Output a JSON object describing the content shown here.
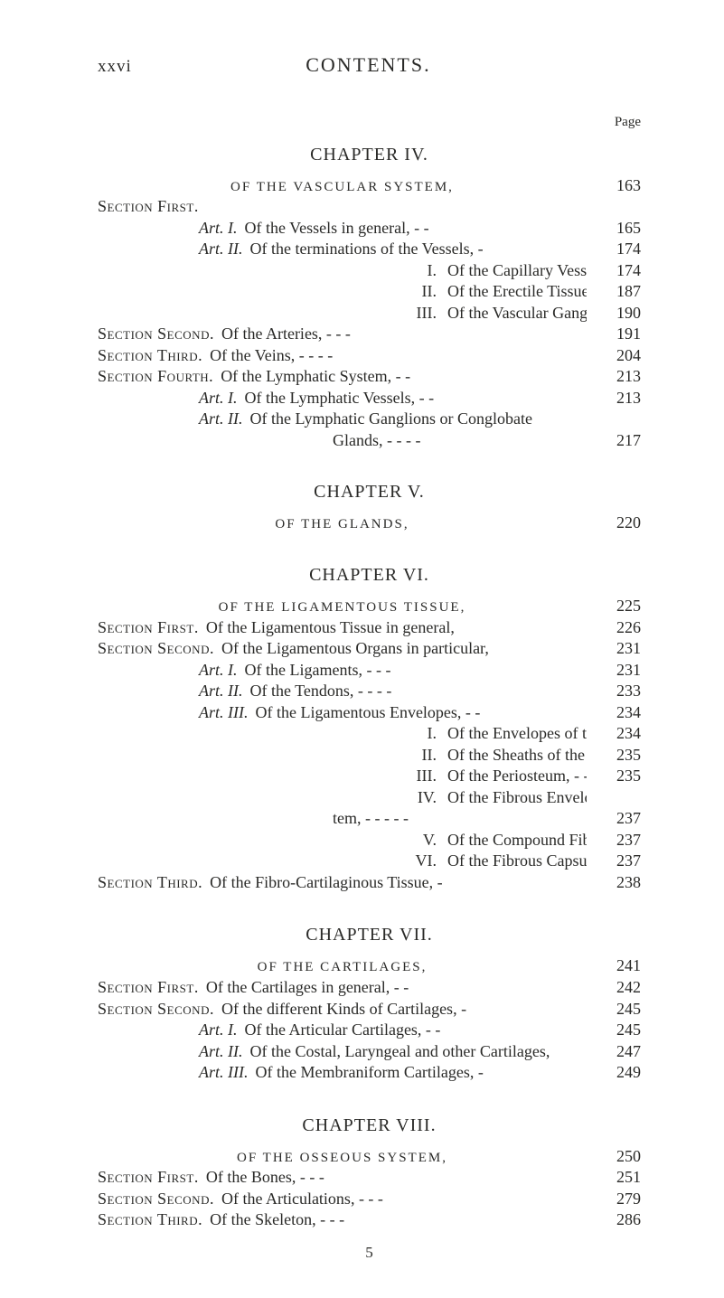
{
  "header": {
    "roman": "xxvi",
    "title": "CONTENTS.",
    "page_label": "Page"
  },
  "chapter4": {
    "heading": "CHAPTER IV.",
    "sub": {
      "text": "OF THE VASCULAR SYSTEM,",
      "page": "163"
    },
    "entries": [
      {
        "lead_sc": "Section First.",
        "desc": "",
        "page": ""
      },
      {
        "lead_it": "Art. I.",
        "indent": "art",
        "desc": "Of the Vessels in general,         -          -",
        "page": "165"
      },
      {
        "lead_it": "Art. II.",
        "indent": "art",
        "desc": "Of the terminations of the Vessels,          -",
        "page": "174"
      },
      {
        "lead": "I.",
        "indent": "num",
        "desc": "Of the Capillary Vessels,          -          -",
        "page": "174"
      },
      {
        "lead": "II.",
        "indent": "num",
        "desc": "Of the Erectile Tissue,             -          -",
        "page": "187"
      },
      {
        "lead": "III.",
        "indent": "num",
        "desc": "Of the Vascular Ganglia,           -          -",
        "page": "190"
      },
      {
        "lead_sc": "Section Second.",
        "desc": "Of the Arteries,             -           -          -",
        "page": "191"
      },
      {
        "lead_sc": "Section Third.",
        "desc": "Of the Veins,       -         -           -          -",
        "page": "204"
      },
      {
        "lead_sc": "Section Fourth.",
        "desc": "Of the Lymphatic System,            -          -",
        "page": "213"
      },
      {
        "lead_it": "Art. I.",
        "indent": "art",
        "desc": "Of the Lymphatic Vessels,           -          -",
        "page": "213"
      },
      {
        "lead_it": "Art. II.",
        "indent": "art",
        "desc": "Of the Lymphatic Ganglions or Conglobate",
        "page": ""
      },
      {
        "cont": true,
        "indent": "tem",
        "desc": "Glands,             -           -           -          -",
        "page": "217"
      }
    ]
  },
  "chapter5": {
    "heading": "CHAPTER V.",
    "sub": {
      "text": "OF THE GLANDS,",
      "page": "220"
    }
  },
  "chapter6": {
    "heading": "CHAPTER VI.",
    "sub": {
      "text": "OF THE LIGAMENTOUS TISSUE,",
      "page": "225"
    },
    "entries": [
      {
        "lead_sc": "Section First.",
        "desc": "Of the Ligamentous Tissue in general,",
        "page": "226"
      },
      {
        "lead_sc": "Section Second.",
        "desc": "Of the Ligamentous Organs in particular,",
        "page": "231"
      },
      {
        "lead_it": "Art. I.",
        "indent": "art",
        "desc": "Of the Ligaments,             -           -          -",
        "page": "231"
      },
      {
        "lead_it": "Art. II.",
        "indent": "art",
        "desc": "Of the Tendons,  -            -           -          -",
        "page": "233"
      },
      {
        "lead_it": "Art. III.",
        "indent": "art",
        "desc": "Of the Ligamentous Envelopes,   -          -",
        "page": "234"
      },
      {
        "lead": "I.",
        "indent": "num",
        "desc": "Of the Envelopes of the Muscles,           -",
        "page": "234"
      },
      {
        "lead": "II.",
        "indent": "num",
        "desc": "Of the Sheaths of the Tendons,    -          -",
        "page": "235"
      },
      {
        "lead": "III.",
        "indent": "num",
        "desc": "Of the Periosteum,            -           -          -",
        "page": "235"
      },
      {
        "lead": "IV.",
        "indent": "num",
        "desc": "Of the Fibrous Envelopes of the Nervous Sys-",
        "page": ""
      },
      {
        "cont": true,
        "indent": "tem",
        "desc": "tem,   -            -           -           -          -",
        "page": "237"
      },
      {
        "lead": "V.",
        "indent": "num",
        "desc": "Of the Compound Fibrous Membranes,    -",
        "page": "237"
      },
      {
        "lead": "VI.",
        "indent": "num",
        "desc": "Of the Fibrous Capsules of some Organs,",
        "page": "237"
      },
      {
        "lead_sc": "Section Third.",
        "desc": "Of the Fibro-Cartilaginous Tissue,          -",
        "page": "238"
      }
    ]
  },
  "chapter7": {
    "heading": "CHAPTER VII.",
    "sub": {
      "text": "OF THE CARTILAGES,",
      "page": "241"
    },
    "entries": [
      {
        "lead_sc": "Section First.",
        "desc": "Of the Cartilages in general,          -          -",
        "page": "242"
      },
      {
        "lead_sc": "Section Second.",
        "desc": "Of the different Kinds of Cartilages,          -",
        "page": "245"
      },
      {
        "lead_it": "Art. I.",
        "indent": "art",
        "desc": "Of the Articular Cartilages,           -          -",
        "page": "245"
      },
      {
        "lead_it": "Art. II.",
        "indent": "art",
        "desc": "Of the Costal, Laryngeal and other Cartilages,",
        "page": "247"
      },
      {
        "lead_it": "Art. III.",
        "indent": "art",
        "desc": "Of the Membraniform Cartilages,             -",
        "page": "249"
      }
    ]
  },
  "chapter8": {
    "heading": "CHAPTER VIII.",
    "sub": {
      "text": "OF THE OSSEOUS SYSTEM,",
      "page": "250"
    },
    "entries": [
      {
        "lead_sc": "Section First.",
        "desc": "Of the Bones,              -           -          -",
        "page": "251"
      },
      {
        "lead_sc": "Section Second.",
        "desc": "Of the Articulations,       -           -          -",
        "page": "279"
      },
      {
        "lead_sc": "Section Third.",
        "desc": "Of the Skeleton,             -           -          -",
        "page": "286"
      }
    ]
  },
  "footer": {
    "signature": "5"
  }
}
